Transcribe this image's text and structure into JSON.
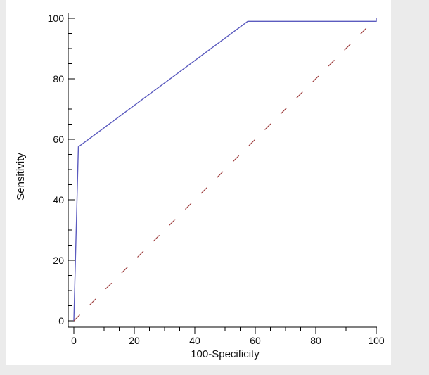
{
  "chart_data": {
    "type": "line",
    "title": "",
    "xlabel": "100-Specificity",
    "ylabel": "Sensitivity",
    "xlim": [
      0,
      100
    ],
    "ylim": [
      0,
      100
    ],
    "x_major_ticks": [
      0,
      20,
      40,
      60,
      80,
      100
    ],
    "y_major_ticks": [
      0,
      20,
      40,
      60,
      80,
      100
    ],
    "minor_tick_step": 5,
    "grid": false,
    "series": [
      {
        "color": "#5b5bbf",
        "style": "solid",
        "points": [
          [
            0,
            0
          ],
          [
            1.5,
            57.5
          ],
          [
            57.5,
            99
          ],
          [
            100,
            99
          ],
          [
            100,
            100
          ]
        ]
      },
      {
        "color": "#a04040",
        "style": "dashed",
        "points": [
          [
            0,
            0
          ],
          [
            100,
            100
          ]
        ]
      }
    ]
  },
  "colors": {
    "background": "#ebebeb",
    "panel": "#ffffff",
    "axis": "#000000"
  }
}
